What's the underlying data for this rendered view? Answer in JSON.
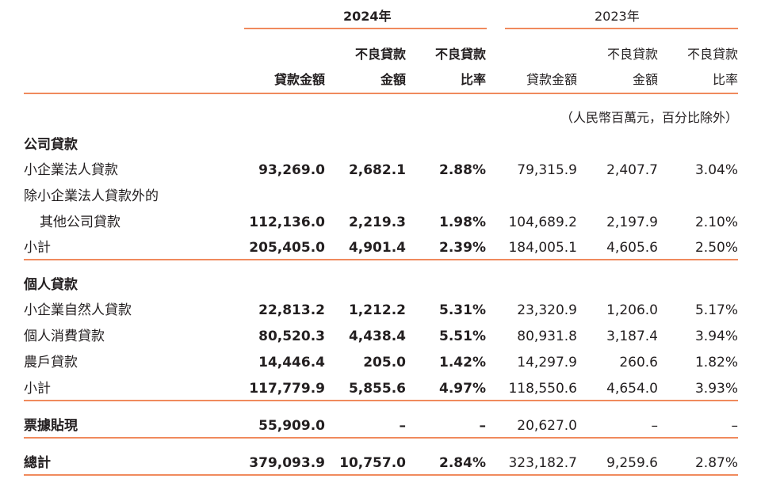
{
  "header": {
    "year_current": "2024年",
    "year_prior": "2023年",
    "columns_current": [
      {
        "line1": "",
        "line2": "貸款金額"
      },
      {
        "line1": "不良貸款",
        "line2": "金額"
      },
      {
        "line1": "不良貸款",
        "line2": "比率"
      }
    ],
    "columns_prior": [
      {
        "line1": "",
        "line2": "貸款金額"
      },
      {
        "line1": "不良貸款",
        "line2": "金額"
      },
      {
        "line1": "不良貸款",
        "line2": "比率"
      }
    ],
    "unit_note": "（人民幣百萬元，百分比除外）"
  },
  "sections": {
    "corporate": {
      "title": "公司貸款",
      "rows": [
        {
          "label": "小企業法人貸款",
          "label2": "",
          "values": [
            "93,269.0",
            "2,682.1",
            "2.88%",
            "79,315.9",
            "2,407.7",
            "3.04%"
          ]
        },
        {
          "label": "除小企業法人貸款外的",
          "label2": "其他公司貸款",
          "values": [
            "112,136.0",
            "2,219.3",
            "1.98%",
            "104,689.2",
            "2,197.9",
            "2.10%"
          ]
        }
      ],
      "subtotal": {
        "label": "小計",
        "values": [
          "205,405.0",
          "4,901.4",
          "2.39%",
          "184,005.1",
          "4,605.6",
          "2.50%"
        ]
      }
    },
    "personal": {
      "title": "個人貸款",
      "rows": [
        {
          "label": "小企業自然人貸款",
          "values": [
            "22,813.2",
            "1,212.2",
            "5.31%",
            "23,320.9",
            "1,206.0",
            "5.17%"
          ]
        },
        {
          "label": "個人消費貸款",
          "values": [
            "80,520.3",
            "4,438.4",
            "5.51%",
            "80,931.8",
            "3,187.4",
            "3.94%"
          ]
        },
        {
          "label": "農戶貸款",
          "values": [
            "14,446.4",
            "205.0",
            "1.42%",
            "14,297.9",
            "260.6",
            "1.82%"
          ]
        }
      ],
      "subtotal": {
        "label": "小計",
        "values": [
          "117,779.9",
          "5,855.6",
          "4.97%",
          "118,550.6",
          "4,654.0",
          "3.93%"
        ]
      }
    },
    "discount": {
      "label": "票據貼現",
      "values": [
        "55,909.0",
        "–",
        "–",
        "20,627.0",
        "–",
        "–"
      ]
    },
    "total": {
      "label": "總計",
      "values": [
        "379,093.9",
        "10,757.0",
        "2.84%",
        "323,182.7",
        "9,259.6",
        "2.87%"
      ]
    }
  },
  "colors": {
    "accent_rule": "#f08a5d",
    "text": "#231f20"
  }
}
